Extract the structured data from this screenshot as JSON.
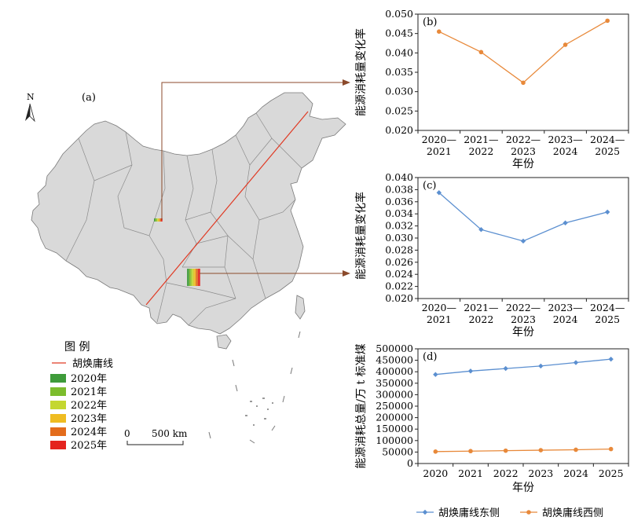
{
  "map": {
    "panel_label": "(a)",
    "north_label": "N",
    "scale_zero": "0",
    "scale_text": "500 km",
    "legend_title": "图 例",
    "legend_line_label": "胡焕庸线",
    "legend_items": [
      {
        "label": "2020年",
        "color": "#3e9b3a"
      },
      {
        "label": "2021年",
        "color": "#7cbd2d"
      },
      {
        "label": "2022年",
        "color": "#c4d730"
      },
      {
        "label": "2023年",
        "color": "#efbc21"
      },
      {
        "label": "2024年",
        "color": "#e36c1c"
      },
      {
        "label": "2025年",
        "color": "#e4231e"
      }
    ],
    "line_color": "#e03a24",
    "arrow_color": "#8b4a2b"
  },
  "chart_data": [
    {
      "type": "line",
      "panel": "(b)",
      "ylabel": "能源消耗量变化率",
      "xlabel": "年份",
      "categories": [
        "2020—2021",
        "2021—2022",
        "2022—2023",
        "2023—2024",
        "2024—2025"
      ],
      "tick_lines": [
        [
          "2020—",
          "2021"
        ],
        [
          "2021—",
          "2022"
        ],
        [
          "2022—",
          "2023"
        ],
        [
          "2023—",
          "2024"
        ],
        [
          "2024—",
          "2025"
        ]
      ],
      "values": [
        0.0455,
        0.0402,
        0.0323,
        0.0421,
        0.0483
      ],
      "ylim": [
        0.02,
        0.05
      ],
      "ytick_step": 0.005,
      "ytick_decimals": 3,
      "color": "#e8893a",
      "marker": "circle"
    },
    {
      "type": "line",
      "panel": "(c)",
      "ylabel": "能源消耗量变化率",
      "xlabel": "年份",
      "categories": [
        "2020—2021",
        "2021—2022",
        "2022—2023",
        "2023—2024",
        "2024—2025"
      ],
      "tick_lines": [
        [
          "2020—",
          "2021"
        ],
        [
          "2021—",
          "2022"
        ],
        [
          "2022—",
          "2023"
        ],
        [
          "2023—",
          "2024"
        ],
        [
          "2024—",
          "2025"
        ]
      ],
      "values": [
        0.0375,
        0.0314,
        0.0295,
        0.0325,
        0.0343
      ],
      "ylim": [
        0.02,
        0.04
      ],
      "ytick_step": 0.002,
      "ytick_decimals": 3,
      "color": "#5b8fd0",
      "marker": "diamond"
    },
    {
      "type": "line",
      "panel": "(d)",
      "ylabel": "能源消耗总量/万 t 标准煤",
      "xlabel": "年份",
      "categories": [
        "2020",
        "2021",
        "2022",
        "2023",
        "2024",
        "2025"
      ],
      "series": [
        {
          "name": "胡焕庸线东侧",
          "values": [
            388000,
            403000,
            414000,
            425000,
            440000,
            455000
          ],
          "color": "#5b8fd0",
          "marker": "diamond"
        },
        {
          "name": "胡焕庸线西侧",
          "values": [
            52000,
            54000,
            56000,
            58000,
            60000,
            63000
          ],
          "color": "#e8893a",
          "marker": "circle"
        }
      ],
      "ylim": [
        0,
        500000
      ],
      "ytick_step": 50000,
      "ytick_decimals": 0,
      "legend_position": "bottom"
    }
  ]
}
